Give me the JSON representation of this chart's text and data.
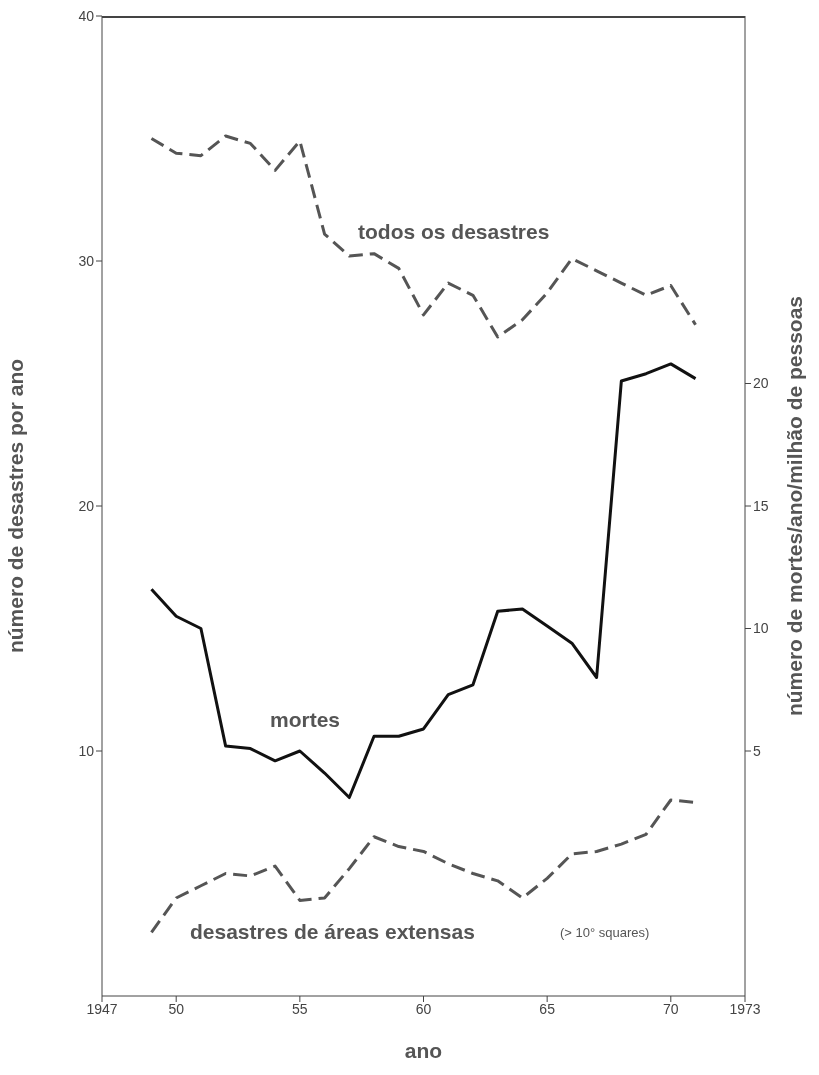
{
  "chart_data": {
    "type": "line",
    "xlabel": "ano",
    "ylabel": "número de desastres por ano",
    "y2label": "número de mortes/ano/milhão de pessoas",
    "x": [
      1949,
      1950,
      1951,
      1952,
      1953,
      1954,
      1955,
      1956,
      1957,
      1958,
      1959,
      1960,
      1961,
      1962,
      1963,
      1964,
      1965,
      1966,
      1967,
      1968,
      1969,
      1970,
      1971
    ],
    "series": [
      {
        "name": "todos os desastres",
        "color": "#555555",
        "line_style": "dashed",
        "values": [
          35.0,
          34.4,
          34.3,
          35.1,
          34.8,
          33.7,
          34.9,
          31.1,
          30.2,
          30.3,
          29.7,
          27.8,
          29.1,
          28.6,
          26.9,
          27.6,
          28.7,
          30.1,
          29.6,
          29.1,
          28.6,
          29.0,
          27.4
        ]
      },
      {
        "name": "mortes",
        "color": "#111111",
        "line_style": "solid",
        "axis": "y2",
        "values": [
          11.6,
          10.5,
          10.0,
          5.2,
          5.1,
          4.6,
          5.0,
          4.1,
          3.1,
          5.6,
          5.6,
          5.9,
          7.3,
          7.7,
          10.7,
          10.8,
          10.1,
          9.4,
          8.0,
          20.1,
          20.4,
          20.8,
          20.2
        ]
      },
      {
        "name": "desastres de áreas extensas",
        "color": "#555555",
        "line_style": "dashed",
        "values": [
          2.6,
          4.0,
          4.5,
          5.0,
          4.9,
          5.3,
          3.9,
          4.0,
          5.2,
          6.5,
          6.1,
          5.9,
          5.4,
          5.0,
          4.7,
          4.0,
          4.8,
          5.8,
          5.9,
          6.2,
          6.6,
          8.0,
          7.9
        ]
      }
    ],
    "annotations": [
      "(> 10° squares)"
    ],
    "xlim": [
      1947,
      1973
    ],
    "xticks": [
      {
        "value": 1947,
        "label": "1947"
      },
      {
        "value": 1950,
        "label": "50"
      },
      {
        "value": 1955,
        "label": "55"
      },
      {
        "value": 1960,
        "label": "60"
      },
      {
        "value": 1965,
        "label": "65"
      },
      {
        "value": 1970,
        "label": "70"
      },
      {
        "value": 1973,
        "label": "1973"
      }
    ],
    "ylim": [
      0,
      40
    ],
    "yticks": [
      10,
      20,
      30,
      40
    ],
    "y2lim": [
      -5,
      35
    ],
    "y2ticks": [
      5,
      10,
      15,
      20
    ],
    "grid": false,
    "legend": false,
    "marker": "none"
  }
}
